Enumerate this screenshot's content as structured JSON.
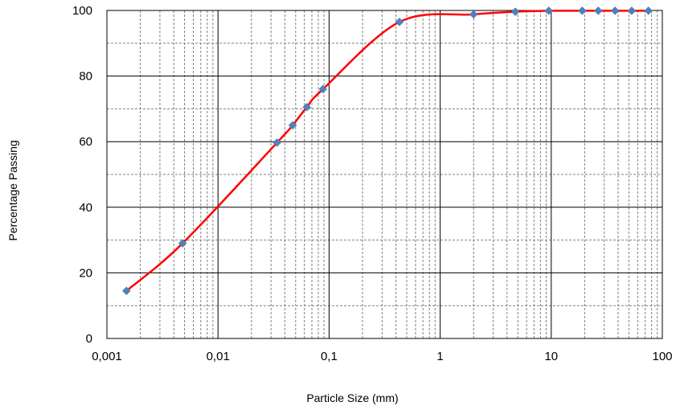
{
  "chart_data": {
    "type": "scatter",
    "title": "",
    "xlabel": "Particle Size (mm)",
    "ylabel": "Percentage Passing",
    "x_scale": "log",
    "xlim": [
      0.001,
      100
    ],
    "ylim": [
      0,
      100
    ],
    "grid": true,
    "x_tick_labels": [
      "0,001",
      "0,01",
      "0,1",
      "1",
      "10",
      "100"
    ],
    "y_tick_labels": [
      "0",
      "20",
      "40",
      "60",
      "80",
      "100"
    ],
    "colors": {
      "curve": "#ff0000",
      "marker": "#4f81bd",
      "grid_major": "#000000",
      "grid_minor": "#808080"
    },
    "series": [
      {
        "x": [
          0.0015,
          0.0048,
          0.034,
          0.047,
          0.063,
          0.088,
          0.43,
          2.0,
          4.75,
          9.5,
          19,
          26.5,
          37.5,
          53,
          75
        ],
        "y": [
          14.5,
          29,
          59.7,
          65,
          70.5,
          76,
          96.5,
          98.8,
          99.6,
          99.9,
          99.9,
          99.9,
          99.9,
          99.9,
          99.9
        ]
      }
    ]
  }
}
